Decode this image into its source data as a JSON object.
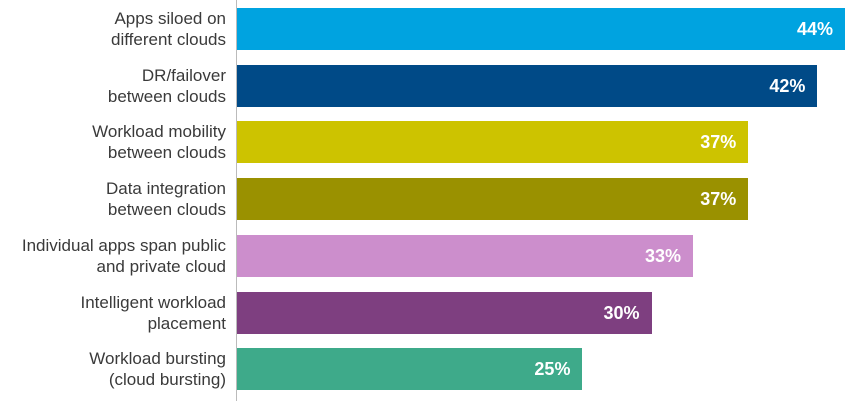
{
  "chart_data": {
    "type": "bar",
    "orientation": "horizontal",
    "categories": [
      "Apps siloed on\ndifferent clouds",
      "DR/failover\nbetween clouds",
      "Workload mobility\nbetween clouds",
      "Data integration\nbetween clouds",
      "Individual apps span public\nand private cloud",
      "Intelligent workload\nplacement",
      "Workload bursting\n(cloud bursting)"
    ],
    "values": [
      44,
      42,
      37,
      37,
      33,
      30,
      25
    ],
    "value_labels": [
      "44%",
      "42%",
      "37%",
      "37%",
      "33%",
      "30%",
      "25%"
    ],
    "colors": [
      "#00a3e0",
      "#004a87",
      "#cdc300",
      "#9a9100",
      "#cc8ecc",
      "#7e3f80",
      "#3eaa8a"
    ]
  }
}
